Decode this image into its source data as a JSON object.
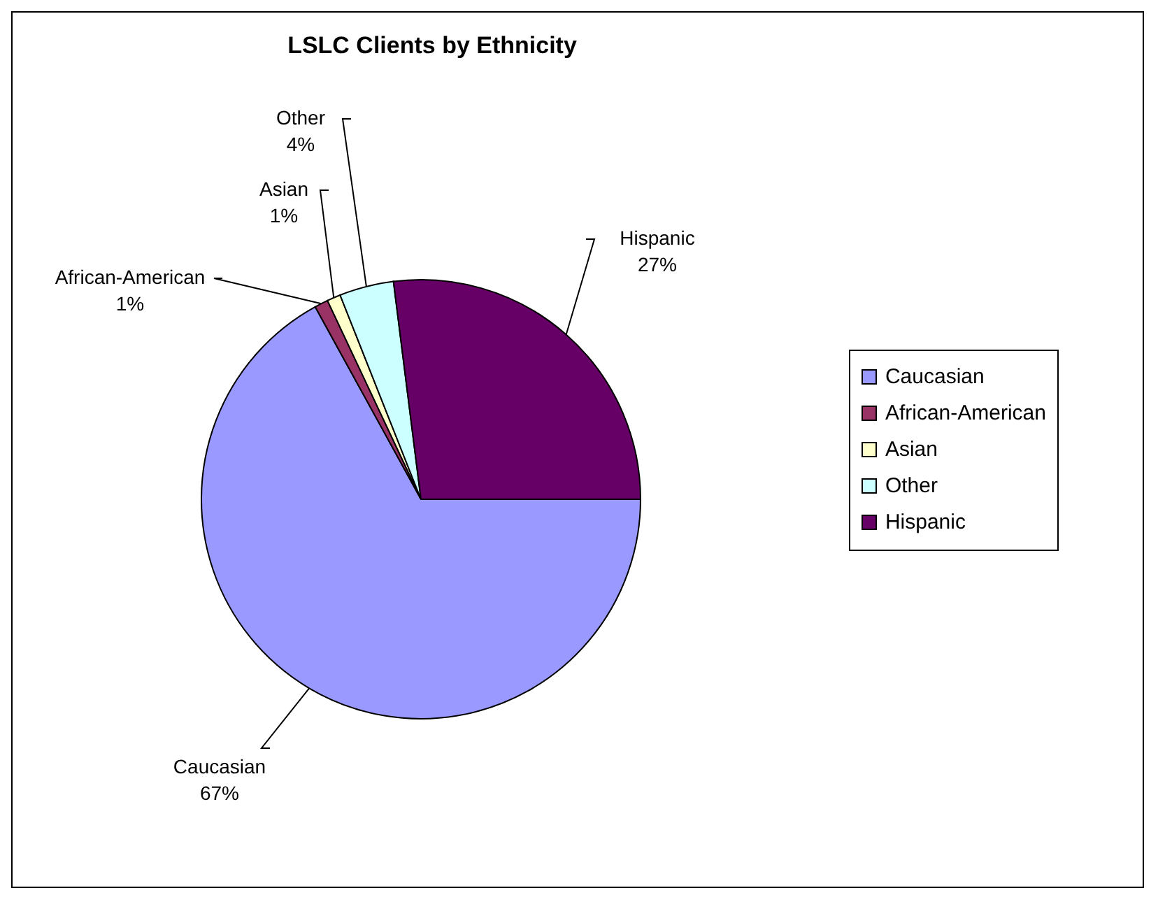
{
  "chart_data": {
    "type": "pie",
    "title": "LSLC Clients by Ethnicity",
    "categories": [
      "Caucasian",
      "African-American",
      "Asian",
      "Other",
      "Hispanic"
    ],
    "values": [
      67,
      1,
      1,
      4,
      27
    ],
    "colors": [
      "#9999ff",
      "#993366",
      "#ffffcc",
      "#ccffff",
      "#660066"
    ],
    "value_labels": [
      "67%",
      "1%",
      "1%",
      "4%",
      "27%"
    ],
    "legend": "right"
  }
}
